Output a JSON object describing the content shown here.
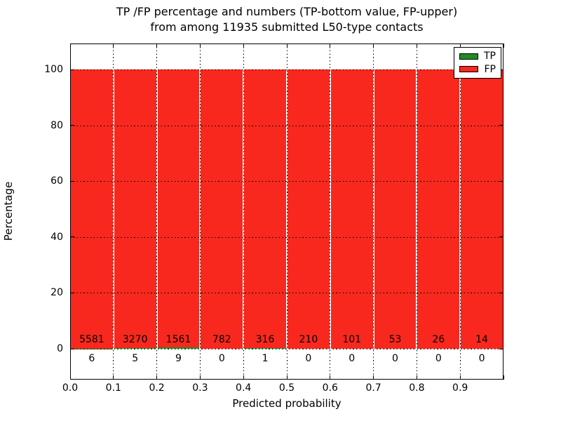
{
  "title": {
    "line1": "TP /FP percentage and numbers (TP-bottom value, FP-upper)",
    "line2": "from among 11935 submitted L50-type contacts"
  },
  "axes": {
    "xlabel": "Predicted probability",
    "ylabel": "Percentage",
    "x_tick_labels": [
      "0.0",
      "0.1",
      "0.2",
      "0.3",
      "0.4",
      "0.5",
      "0.6",
      "0.7",
      "0.8",
      "0.9"
    ],
    "y_tick_labels": [
      "0",
      "20",
      "40",
      "60",
      "80",
      "100"
    ],
    "y_tick_values": [
      0,
      20,
      40,
      60,
      80,
      100
    ]
  },
  "legend": {
    "position": "upper right",
    "entries": [
      {
        "label": "TP",
        "color": "#228b22"
      },
      {
        "label": "FP",
        "color": "#f8281e"
      }
    ]
  },
  "chart_data": {
    "type": "bar",
    "stacked": true,
    "orientation": "vertical",
    "title": "TP /FP percentage and numbers (TP-bottom value, FP-upper) from among 11935 submitted L50-type contacts",
    "xlabel": "Predicted probability",
    "ylabel": "Percentage",
    "x_bin_edges": [
      0.0,
      0.1,
      0.2,
      0.3,
      0.4,
      0.5,
      0.6,
      0.7,
      0.8,
      0.9,
      1.0
    ],
    "categories": [
      "0.0-0.1",
      "0.1-0.2",
      "0.2-0.3",
      "0.3-0.4",
      "0.4-0.5",
      "0.5-0.6",
      "0.6-0.7",
      "0.7-0.8",
      "0.8-0.9",
      "0.9-1.0"
    ],
    "series": [
      {
        "name": "TP",
        "color": "#228b22",
        "counts": [
          6,
          5,
          9,
          0,
          1,
          0,
          0,
          0,
          0,
          0
        ]
      },
      {
        "name": "FP",
        "color": "#f8281e",
        "counts": [
          5581,
          3270,
          1561,
          782,
          316,
          210,
          101,
          53,
          26,
          14
        ]
      }
    ],
    "bar_heights": "percent of bin total (TP% + FP% = 100); TP drawn at bottom, FP stacked above",
    "count_labels": "FP counts printed just above the 0 line inside the red bars; TP counts printed just below the 0 line",
    "total_contacts": 11935,
    "xlim": [
      0.0,
      1.0
    ],
    "ylim": [
      -11,
      109
    ],
    "y_gridlines": [
      0,
      20,
      40,
      60,
      80,
      100
    ],
    "grid_style": "dotted black, drawn over bars",
    "legend_position": "upper right"
  }
}
